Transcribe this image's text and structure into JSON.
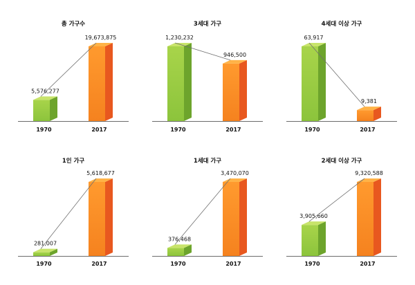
{
  "colors": {
    "green_front_top": "#a8d44a",
    "green_front_bottom": "#8cc43c",
    "green_side": "#6da42c",
    "green_top": "#c8e46a",
    "orange_front_top": "#ff9a2e",
    "orange_front_bottom": "#f5821f",
    "orange_side": "#e8581f",
    "orange_top": "#ffb347",
    "axis": "#6b6b6b",
    "connector": "#707070",
    "text": "#111111"
  },
  "chart_data": [
    {
      "type": "bar",
      "title": "총 가구수",
      "categories": [
        "1970",
        "2017"
      ],
      "values": [
        5576277,
        19673875
      ],
      "data_labels": [
        "5,576,277",
        "19,673,875"
      ],
      "ylim": [
        0,
        19673875
      ],
      "grid": false,
      "legend": "none"
    },
    {
      "type": "bar",
      "title": "3세대 가구",
      "categories": [
        "1970",
        "2017"
      ],
      "values": [
        1230232,
        946500
      ],
      "data_labels": [
        "1,230,232",
        "946,500"
      ],
      "ylim": [
        0,
        1230232
      ],
      "grid": false,
      "legend": "none"
    },
    {
      "type": "bar",
      "title": "4세대 이상 가구",
      "categories": [
        "1970",
        "2017"
      ],
      "values": [
        63917,
        9381
      ],
      "data_labels": [
        "63,917",
        "9,381"
      ],
      "ylim": [
        0,
        63917
      ],
      "grid": false,
      "legend": "none"
    },
    {
      "type": "bar",
      "title": "1인 가구",
      "categories": [
        "1970",
        "2017"
      ],
      "values": [
        281007,
        5618677
      ],
      "data_labels": [
        "281,007",
        "5,618,677"
      ],
      "ylim": [
        0,
        5618677
      ],
      "grid": false,
      "legend": "none"
    },
    {
      "type": "bar",
      "title": "1세대 가구",
      "categories": [
        "1970",
        "2017"
      ],
      "values": [
        376468,
        3470070
      ],
      "data_labels": [
        "376,468",
        "3,470,070"
      ],
      "ylim": [
        0,
        3470070
      ],
      "grid": false,
      "legend": "none"
    },
    {
      "type": "bar",
      "title": "2세대 이상 가구",
      "categories": [
        "1970",
        "2017"
      ],
      "values": [
        3905660,
        9320588
      ],
      "data_labels": [
        "3,905,660",
        "9,320,588"
      ],
      "ylim": [
        0,
        9320588
      ],
      "grid": false,
      "legend": "none"
    }
  ]
}
